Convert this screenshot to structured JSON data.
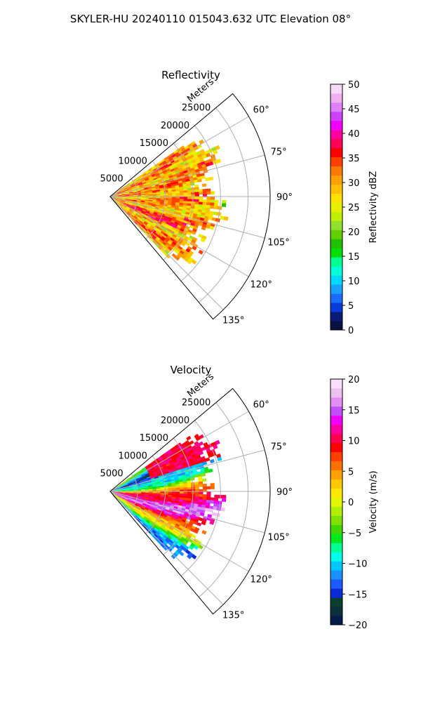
{
  "figure_title": "SKYLER-HU  20240110  015043.632 UTC Elevation 08°",
  "chart_data": [
    {
      "type": "heatmap",
      "projection": "polar-sector",
      "title": "Reflectivity",
      "range_axis_label": "Meters",
      "range_ticks": [
        5000,
        10000,
        15000,
        20000,
        25000
      ],
      "range_limit": [
        0,
        29000
      ],
      "azimuth_ticks": [
        "60°",
        "75°",
        "90°",
        "105°",
        "120°",
        "135°"
      ],
      "azimuth_limit_deg": [
        50,
        140
      ],
      "data_azimuth_deg": [
        55,
        135
      ],
      "grid": true,
      "colorbar": {
        "label": "Reflectivity dBZ",
        "range": [
          0,
          50
        ],
        "ticks": [
          "0",
          "5",
          "10",
          "15",
          "20",
          "25",
          "30",
          "35",
          "40",
          "45",
          "50"
        ],
        "colors": [
          "#0a1040",
          "#0a1a78",
          "#0a3ad8",
          "#1a6cff",
          "#1aa0ff",
          "#00d8ff",
          "#00ffd8",
          "#00ff90",
          "#00e000",
          "#20c000",
          "#60d000",
          "#90e030",
          "#c0f000",
          "#e8f000",
          "#ffe000",
          "#ffc000",
          "#ffa000",
          "#ff7800",
          "#ff4000",
          "#ff0000",
          "#ff0058",
          "#ff00a0",
          "#f000ff",
          "#d040ff",
          "#e080ff",
          "#f0b0f0",
          "#fad8fa"
        ]
      }
    },
    {
      "type": "heatmap",
      "projection": "polar-sector",
      "title": "Velocity",
      "range_axis_label": "Meters",
      "range_ticks": [
        5000,
        10000,
        15000,
        20000,
        25000
      ],
      "range_limit": [
        0,
        29000
      ],
      "azimuth_ticks": [
        "60°",
        "75°",
        "90°",
        "105°",
        "120°",
        "135°"
      ],
      "azimuth_limit_deg": [
        50,
        140
      ],
      "data_azimuth_deg": [
        55,
        135
      ],
      "grid": true,
      "colorbar": {
        "label": "Velocity (m/s)",
        "range": [
          -20,
          20
        ],
        "ticks": [
          "−20",
          "−15",
          "−10",
          "−5",
          "0",
          "5",
          "10",
          "15",
          "20"
        ],
        "colors": [
          "#061a4a",
          "#0a3040",
          "#0a4030",
          "#0a2ad8",
          "#1a5cff",
          "#1a90ff",
          "#00c8ff",
          "#00ffe8",
          "#00ff90",
          "#00e820",
          "#40d800",
          "#80e000",
          "#b0f000",
          "#e0f800",
          "#ffe800",
          "#ffc800",
          "#ffa000",
          "#ff7000",
          "#ff4000",
          "#ff0000",
          "#ff0050",
          "#ff00a0",
          "#f000ff",
          "#c050ff",
          "#e090f0",
          "#f0c0f0",
          "#fae0fa"
        ]
      }
    }
  ]
}
